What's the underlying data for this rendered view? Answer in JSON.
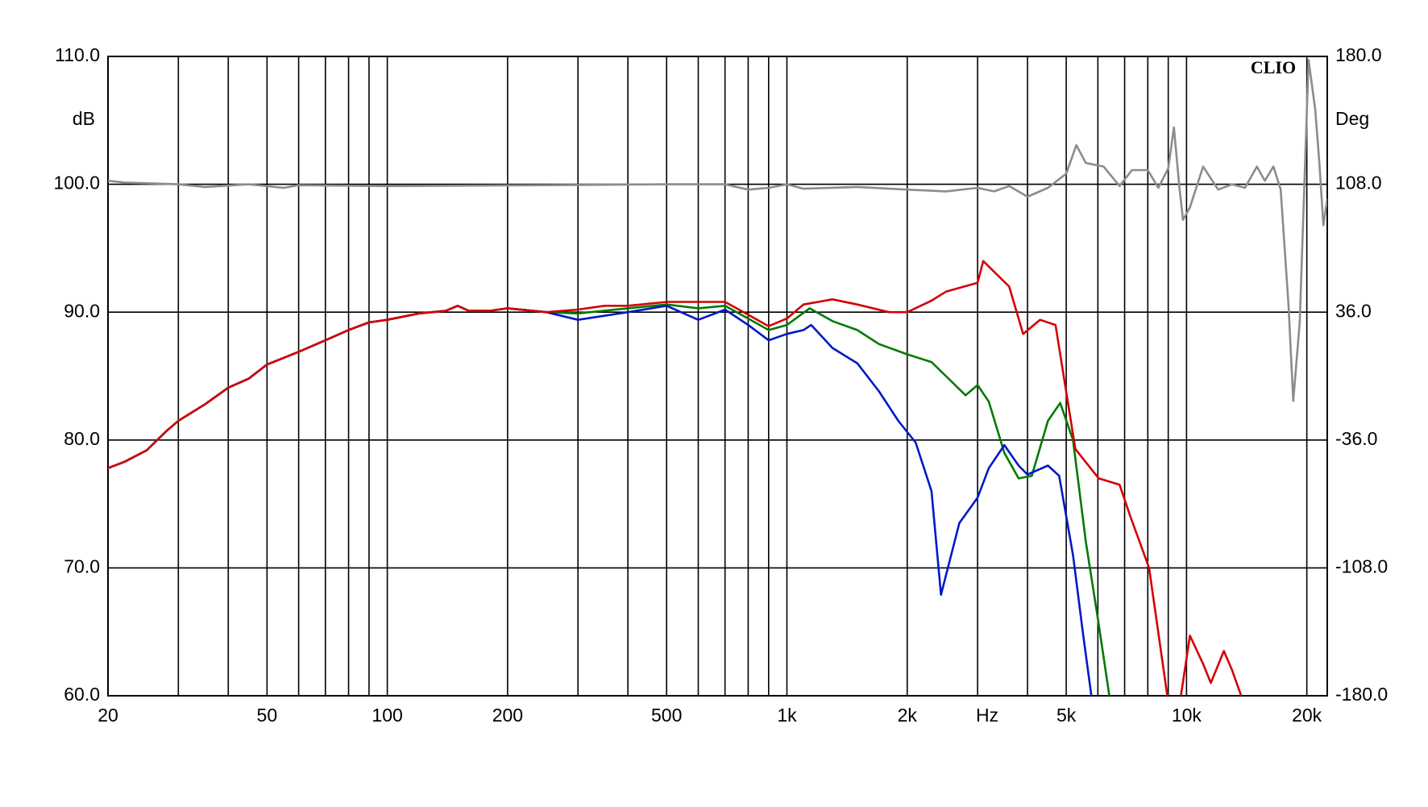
{
  "chart_data": {
    "type": "line",
    "annotation": "CLIO",
    "x_label": "Hz",
    "y_label": "dB",
    "y2_label": "Deg",
    "xscale": "log",
    "xlim": [
      20,
      22500
    ],
    "xticks": [
      20,
      50,
      100,
      200,
      500,
      {
        "value": 1000,
        "label": "1k"
      },
      {
        "value": 2000,
        "label": "2k"
      },
      {
        "value": 5000,
        "label": "5k"
      },
      {
        "value": 10000,
        "label": "10k"
      },
      {
        "value": 20000,
        "label": "20k"
      }
    ],
    "xminorticks": [
      30,
      40,
      60,
      70,
      80,
      90,
      300,
      400,
      600,
      700,
      800,
      900,
      3000,
      4000,
      6000,
      7000,
      8000,
      9000
    ],
    "ylim": [
      60,
      110
    ],
    "yticks": [
      {
        "value": 60,
        "label": "60.0"
      },
      {
        "value": 70,
        "label": "70.0"
      },
      {
        "value": 80,
        "label": "80.0"
      },
      {
        "value": 90,
        "label": "90.0"
      },
      {
        "value": 100,
        "label": "100.0"
      },
      {
        "value": 110,
        "label": "110.0"
      }
    ],
    "y2lim": [
      -180,
      180
    ],
    "y2ticks": [
      {
        "value": -180,
        "label": "-180.0"
      },
      {
        "value": -108,
        "label": "-108.0"
      },
      {
        "value": -36,
        "label": "-36.0"
      },
      {
        "value": 36,
        "label": "36.0"
      },
      {
        "value": 108,
        "label": "108.0"
      },
      {
        "value": 180,
        "label": "180.0"
      }
    ],
    "grid": true,
    "series": [
      {
        "color": "#d40000",
        "x": [
          20,
          22,
          25,
          28,
          30,
          35,
          40,
          45,
          50,
          60,
          70,
          80,
          90,
          100,
          120,
          140,
          150,
          160,
          180,
          200,
          250,
          300,
          350,
          400,
          500,
          600,
          700,
          800,
          900,
          1000,
          1100,
          1300,
          1500,
          1800,
          2000,
          2300,
          2500,
          3000,
          3100,
          3600,
          3900,
          4300,
          4700,
          4880,
          5270,
          6030,
          6800,
          7240,
          8060,
          8950,
          9300,
          9680,
          10200,
          11000,
          11500,
          12400,
          13000,
          13700
        ],
        "values": [
          77.8,
          78.3,
          79.2,
          80.7,
          81.5,
          82.8,
          84.1,
          84.8,
          85.9,
          86.9,
          87.8,
          88.6,
          89.2,
          89.4,
          89.9,
          90.1,
          90.5,
          90.1,
          90.1,
          90.3,
          90.0,
          90.2,
          90.5,
          90.5,
          90.8,
          90.8,
          90.8,
          89.8,
          88.9,
          89.5,
          90.6,
          91.0,
          90.6,
          90.0,
          90.0,
          90.9,
          91.6,
          92.3,
          94.0,
          92.0,
          88.3,
          89.4,
          89.0,
          85.8,
          79.3,
          77.0,
          76.5,
          74.0,
          70.0,
          60.0,
          null,
          60.0,
          64.7,
          62.5,
          61.0,
          63.5,
          62.0,
          60.0
        ]
      },
      {
        "color": "#007a00",
        "x": [
          20,
          22,
          25,
          28,
          30,
          35,
          40,
          45,
          50,
          60,
          70,
          80,
          90,
          100,
          120,
          140,
          150,
          160,
          180,
          200,
          250,
          300,
          400,
          500,
          600,
          700,
          800,
          900,
          1000,
          1140,
          1300,
          1500,
          1700,
          2000,
          2300,
          2500,
          2800,
          3000,
          3200,
          3500,
          3800,
          4100,
          4500,
          4830,
          5200,
          5600,
          6000,
          6410
        ],
        "values": [
          77.8,
          78.3,
          79.2,
          80.7,
          81.5,
          82.8,
          84.1,
          84.8,
          85.9,
          86.9,
          87.8,
          88.6,
          89.2,
          89.4,
          89.9,
          90.1,
          90.5,
          90.1,
          90.1,
          90.3,
          90.0,
          89.9,
          90.3,
          90.6,
          90.3,
          90.5,
          89.5,
          88.6,
          89.0,
          90.3,
          89.3,
          88.6,
          87.5,
          86.7,
          86.1,
          85.0,
          83.5,
          84.3,
          83.0,
          79.0,
          77.0,
          77.2,
          81.5,
          82.9,
          80.0,
          72.0,
          66.0,
          60.0
        ]
      },
      {
        "color": "#0018c8",
        "x": [
          20,
          22,
          25,
          28,
          30,
          35,
          40,
          45,
          50,
          60,
          70,
          80,
          90,
          100,
          120,
          140,
          150,
          160,
          180,
          200,
          250,
          300,
          400,
          500,
          600,
          700,
          800,
          900,
          1000,
          1100,
          1150,
          1300,
          1500,
          1700,
          1900,
          2100,
          2300,
          2430,
          2700,
          3000,
          3200,
          3500,
          3800,
          4000,
          4500,
          4800,
          5200,
          5500,
          5780
        ],
        "values": [
          77.8,
          78.3,
          79.2,
          80.7,
          81.5,
          82.8,
          84.1,
          84.8,
          85.9,
          86.9,
          87.8,
          88.6,
          89.2,
          89.4,
          89.9,
          90.1,
          90.5,
          90.1,
          90.1,
          90.3,
          90.0,
          89.4,
          90.0,
          90.5,
          89.4,
          90.2,
          89.0,
          87.8,
          88.3,
          88.6,
          89.0,
          87.2,
          86.0,
          83.8,
          81.5,
          79.8,
          76.0,
          67.9,
          73.5,
          75.5,
          77.8,
          79.6,
          78.0,
          77.3,
          78.0,
          77.2,
          71.0,
          65.0,
          60.0
        ]
      },
      {
        "color": "#8c8c8c",
        "axis": "y2",
        "x": [
          20,
          22,
          30,
          35,
          45,
          55,
          60,
          100,
          250,
          500,
          700,
          800,
          900,
          1000,
          1100,
          1500,
          2000,
          2500,
          3000,
          3300,
          3600,
          4000,
          4500,
          5000,
          5300,
          5600,
          6200,
          6800,
          7300,
          8000,
          8500,
          9000,
          9300,
          9600,
          9800,
          10200,
          11000,
          12000,
          13000,
          14000,
          15000,
          15700,
          16500,
          17200,
          18000,
          18500,
          19200,
          20200,
          21000,
          21500,
          22000,
          22500
        ],
        "values": [
          110,
          109,
          108,
          106.5,
          108,
          106,
          107.5,
          107,
          107.5,
          108,
          108,
          105,
          106,
          108,
          105.5,
          106.5,
          105,
          104,
          106,
          104,
          107,
          101,
          106,
          114,
          130,
          120,
          118,
          107,
          116,
          116,
          106,
          117,
          140,
          106,
          88,
          95,
          118,
          105,
          108,
          106,
          118,
          110,
          118,
          105,
          40,
          -14,
          30,
          178,
          150,
          120,
          85,
          100
        ]
      }
    ]
  }
}
